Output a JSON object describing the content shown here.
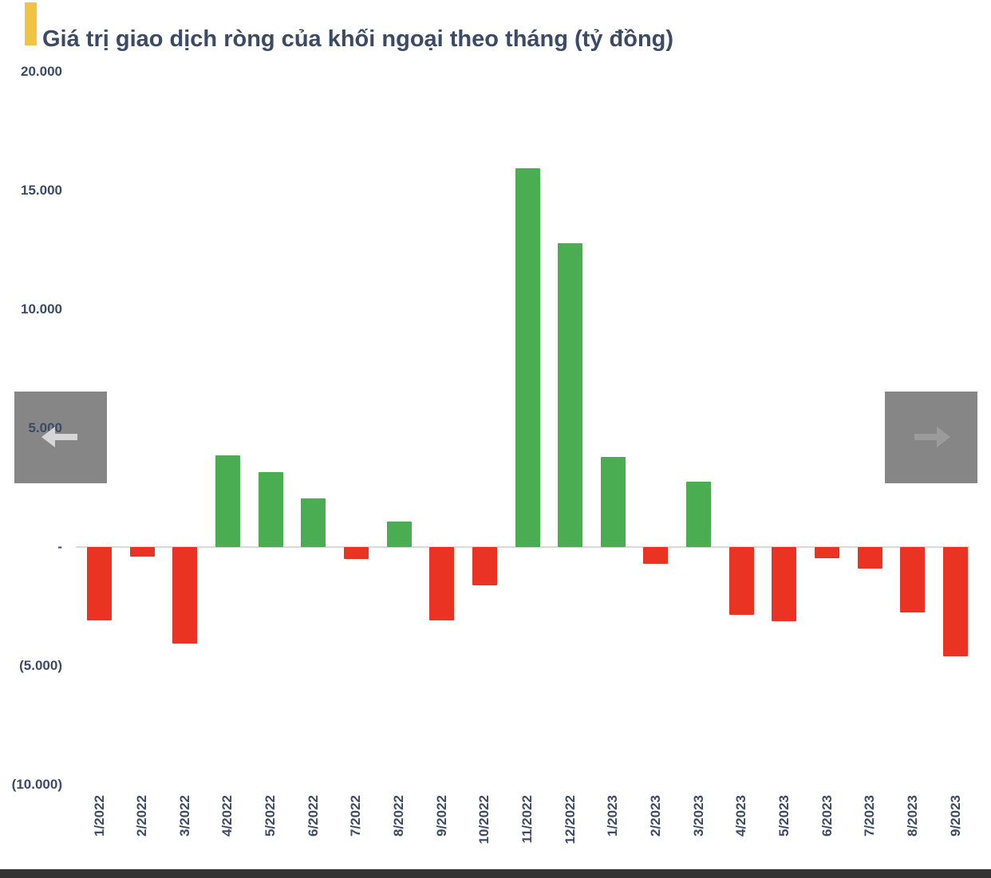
{
  "header": {
    "title": "Giá trị giao dịch ròng của khối ngoại theo tháng (tỷ đồng)",
    "accent_color": "#F0C343"
  },
  "colors": {
    "positive_bar": "#4AAD51",
    "negative_bar": "#EA3323",
    "axis_line": "#D9D9D9",
    "label_text": "#3B4A66",
    "nav_button_bg": "#868686",
    "nav_arrow_left": "#D6D6D6",
    "nav_arrow_right": "#9B9B9B",
    "footer_bar": "#333333"
  },
  "nav": {
    "prev_icon": "arrow-left-icon",
    "next_icon": "arrow-right-icon"
  },
  "chart_data": {
    "type": "bar",
    "title": "Giá trị giao dịch ròng của khối ngoại theo tháng (tỷ đồng)",
    "unit": "tỷ đồng",
    "categories": [
      "1/2022",
      "2/2022",
      "3/2022",
      "4/2022",
      "5/2022",
      "6/2022",
      "7/2022",
      "8/2022",
      "9/2022",
      "10/2022",
      "11/2022",
      "12/2022",
      "1/2023",
      "2/2023",
      "3/2023",
      "4/2023",
      "5/2023",
      "6/2023",
      "7/2023",
      "8/2023",
      "9/2023"
    ],
    "values": [
      -3100,
      -400,
      -4050,
      3870,
      3160,
      2050,
      -500,
      1080,
      -3100,
      -1620,
      15950,
      12800,
      3800,
      -700,
      2750,
      -2850,
      -3120,
      -470,
      -900,
      -2750,
      -4600
    ],
    "ylim": [
      -10000,
      20000
    ],
    "yticks": [
      {
        "value": 20000,
        "label": "20.000"
      },
      {
        "value": 15000,
        "label": "15.000"
      },
      {
        "value": 10000,
        "label": "10.000"
      },
      {
        "value": 5000,
        "label": "5.000"
      },
      {
        "value": 0,
        "label": "-"
      },
      {
        "value": -5000,
        "label": "(5.000)"
      },
      {
        "value": -10000,
        "label": "(10.000)"
      }
    ],
    "grid": false,
    "legend": false
  }
}
